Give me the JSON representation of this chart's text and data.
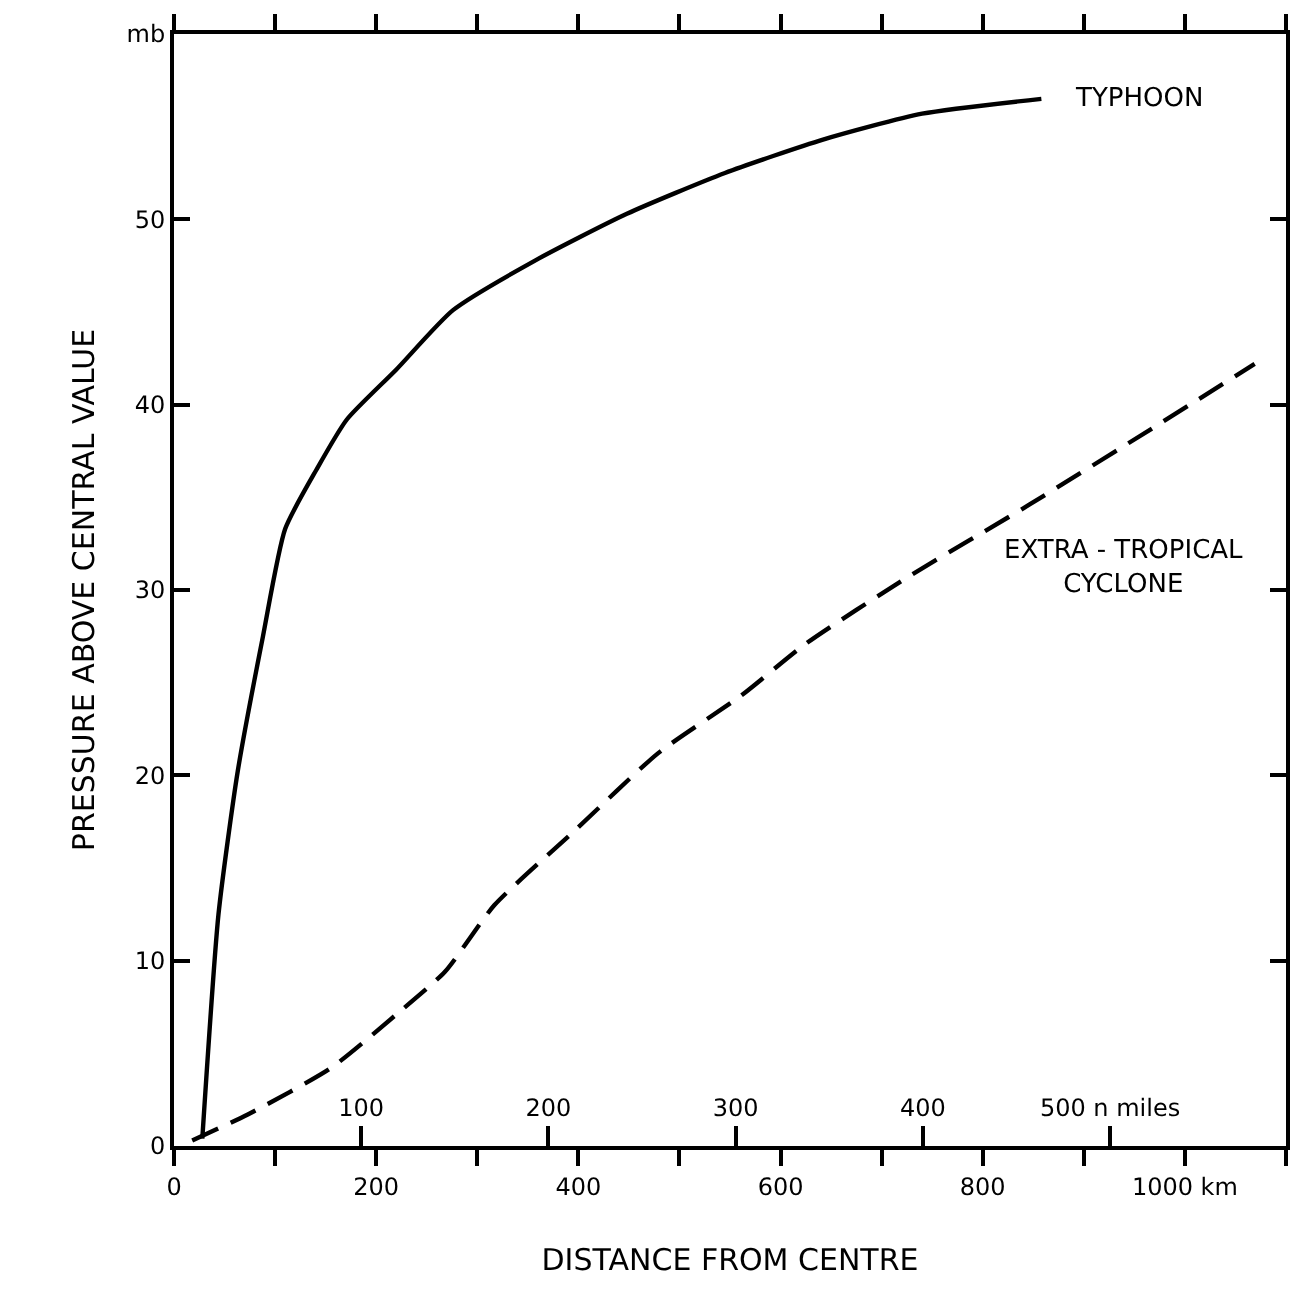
{
  "chart_data": {
    "type": "line",
    "xlabel": "DISTANCE FROM CENTRE",
    "ylabel": "PRESSURE ABOVE CENTRAL VALUE",
    "xlim": [
      0,
      1100
    ],
    "xticks": [
      0,
      {
        "value": 100,
        "label": null
      },
      200,
      {
        "value": 300,
        "label": null
      },
      400,
      {
        "value": 500,
        "label": null
      },
      600,
      {
        "value": 700,
        "label": null
      },
      800,
      {
        "value": 900,
        "label": null
      },
      {
        "value": 1000,
        "label": "1000 km"
      },
      {
        "value": 1100,
        "label": null
      }
    ],
    "x2lim": [
      0,
      594
    ],
    "x2ticks": [
      100,
      200,
      300,
      400,
      {
        "value": 500,
        "label": "500 n miles"
      }
    ],
    "ylim": [
      0,
      60
    ],
    "yticks": [
      0,
      10,
      20,
      30,
      40,
      50,
      {
        "value": 60,
        "label": "mb"
      }
    ],
    "legend": false,
    "marker": "none",
    "series": [
      {
        "name": "TYPHOON",
        "color": "#000000",
        "line_style": "solid",
        "x": [
          28,
          44,
          63,
          88,
          110,
          141,
          171,
          220,
          276,
          358,
          448,
          545,
          642,
          740,
          858
        ],
        "values": [
          0.4,
          12.5,
          20.2,
          27.5,
          33.3,
          36.5,
          39.2,
          41.9,
          45.1,
          47.8,
          50.3,
          52.5,
          54.3,
          55.7,
          56.5
        ]
      },
      {
        "name": "EXTRA - TROPICAL\nCYCLONE",
        "color": "#000000",
        "line_style": "dashed",
        "x": [
          18,
          73,
          155,
          220,
          268,
          317,
          398,
          479,
          561,
          625,
          723,
          846,
          967,
          1069
        ],
        "values": [
          0.3,
          1.7,
          4.2,
          7.1,
          9.4,
          13.0,
          17.1,
          21.2,
          24.3,
          27.1,
          30.6,
          34.6,
          38.7,
          42.2
        ]
      }
    ]
  }
}
